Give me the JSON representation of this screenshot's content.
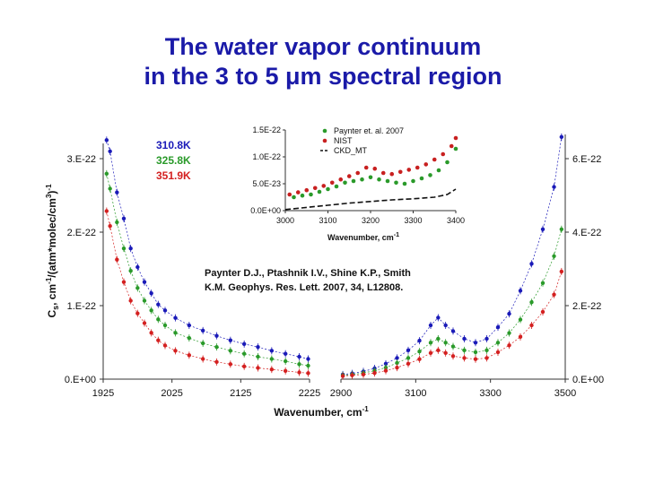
{
  "slide": {
    "title_line1": "The water vapor continuum",
    "title_line2": "in the 3 to 5 μm spectral region",
    "citation_line1": "Paynter D.J., Ptashnik I.V., Shine K.P., Smith",
    "citation_line2": "K.M. Geophys. Res. Lett. 2007, 34, L12808."
  },
  "colors": {
    "title": "#1a1aa8",
    "s310": "#1a1ab8",
    "s325": "#2a9a2a",
    "s351": "#d42020",
    "nist": "#c82020",
    "paynter": "#2a9a2a",
    "ckd": "#111111"
  },
  "chart_data": [
    {
      "type": "scatter",
      "ylabel": "Cs, cm-1/(atm*molec/cm3)-1",
      "xlabel": "Wavenumber, cm-1",
      "left_panel": {
        "xlim": [
          1925,
          2225
        ],
        "x_ticks": [
          "1925",
          "2025",
          "2125",
          "2225"
        ],
        "y_ticks": [
          "0.E+00",
          "1.E-22",
          "2.E-22",
          "3.E-22"
        ],
        "ylim": [
          0,
          3.3e-22
        ],
        "series": [
          {
            "name": "310.8K",
            "color_key": "s310",
            "x": [
              1930,
              1935,
              1945,
              1955,
              1965,
              1975,
              1985,
              1995,
              2005,
              2015,
              2030,
              2050,
              2070,
              2090,
              2110,
              2130,
              2150,
              2170,
              2190,
              2210,
              2223
            ],
            "y": [
              3.2e-22,
              3.05e-22,
              2.5e-22,
              2.15e-22,
              1.75e-22,
              1.5e-22,
              1.3e-22,
              1.15e-22,
              1e-22,
              9.2e-23,
              8.2e-23,
              7.2e-23,
              6.5e-23,
              5.8e-23,
              5.2e-23,
              4.7e-23,
              4.3e-23,
              3.8e-23,
              3.4e-23,
              3e-23,
              2.7e-23
            ]
          },
          {
            "name": "325.8K",
            "color_key": "s325",
            "x": [
              1930,
              1935,
              1945,
              1955,
              1965,
              1975,
              1985,
              1995,
              2005,
              2015,
              2030,
              2050,
              2070,
              2090,
              2110,
              2130,
              2150,
              2170,
              2190,
              2210,
              2223
            ],
            "y": [
              2.75e-22,
              2.55e-22,
              2.1e-22,
              1.75e-22,
              1.45e-22,
              1.22e-22,
              1.05e-22,
              9.2e-23,
              8e-23,
              7.2e-23,
              6.2e-23,
              5.5e-23,
              4.8e-23,
              4.3e-23,
              3.8e-23,
              3.4e-23,
              3e-23,
              2.7e-23,
              2.4e-23,
              2e-23,
              1.8e-23
            ]
          },
          {
            "name": "351.9K",
            "color_key": "s351",
            "x": [
              1930,
              1935,
              1945,
              1955,
              1965,
              1975,
              1985,
              1995,
              2005,
              2015,
              2030,
              2050,
              2070,
              2090,
              2110,
              2130,
              2150,
              2170,
              2190,
              2210,
              2223
            ],
            "y": [
              2.25e-22,
              2.05e-22,
              1.6e-22,
              1.3e-22,
              1.05e-22,
              8.8e-23,
              7.5e-23,
              6.2e-23,
              5.2e-23,
              4.5e-23,
              3.8e-23,
              3.2e-23,
              2.7e-23,
              2.3e-23,
              2e-23,
              1.7e-23,
              1.5e-23,
              1.3e-23,
              1.1e-23,
              9e-24,
              8e-24
            ]
          }
        ]
      },
      "right_panel": {
        "xlim": [
          2900,
          3500
        ],
        "x_ticks": [
          "2900",
          "3100",
          "3300",
          "3500"
        ],
        "y_ticks": [
          "0.E+00",
          "2.E-22",
          "4.E-22",
          "6.E-22"
        ],
        "ylim": [
          0,
          6.6e-22
        ],
        "series": [
          {
            "name": "310.8K",
            "color_key": "s310",
            "x": [
              2905,
              2930,
              2960,
              2990,
              3020,
              3050,
              3080,
              3110,
              3140,
              3160,
              3180,
              3200,
              3230,
              3260,
              3290,
              3320,
              3350,
              3380,
              3410,
              3440,
              3470,
              3490
            ],
            "y": [
              1.2e-23,
              1.5e-23,
              2e-23,
              2.8e-23,
              4e-23,
              5.5e-23,
              7.5e-23,
              1e-22,
              1.4e-22,
              1.6e-22,
              1.4e-22,
              1.25e-22,
              1.05e-22,
              9.5e-23,
              1.05e-22,
              1.35e-22,
              1.7e-22,
              2.3e-22,
              3e-22,
              3.9e-22,
              5e-22,
              6.3e-22
            ]
          },
          {
            "name": "325.8K",
            "color_key": "s325",
            "x": [
              2905,
              2930,
              2960,
              2990,
              3020,
              3050,
              3080,
              3110,
              3140,
              3160,
              3180,
              3200,
              3230,
              3260,
              3290,
              3320,
              3350,
              3380,
              3410,
              3440,
              3470,
              3490
            ],
            "y": [
              1e-23,
              1.2e-23,
              1.6e-23,
              2.2e-23,
              3e-23,
              4.2e-23,
              5.5e-23,
              7.2e-23,
              9.5e-23,
              1.05e-22,
              9.5e-23,
              8.5e-23,
              7.5e-23,
              7e-23,
              7.5e-23,
              9.5e-23,
              1.2e-22,
              1.55e-22,
              2e-22,
              2.5e-22,
              3.2e-22,
              3.9e-22
            ]
          },
          {
            "name": "351.9K",
            "color_key": "s351",
            "x": [
              2905,
              2930,
              2960,
              2990,
              3020,
              3050,
              3080,
              3110,
              3140,
              3160,
              3180,
              3200,
              3230,
              3260,
              3290,
              3320,
              3350,
              3380,
              3410,
              3440,
              3470,
              3490
            ],
            "y": [
              8e-24,
              1e-23,
              1.2e-23,
              1.6e-23,
              2.2e-23,
              3e-23,
              4e-23,
              5.2e-23,
              6.8e-23,
              7.5e-23,
              6.8e-23,
              6e-23,
              5.5e-23,
              5.2e-23,
              5.5e-23,
              7e-23,
              8.8e-23,
              1.1e-22,
              1.4e-22,
              1.75e-22,
              2.2e-22,
              2.8e-22
            ]
          }
        ]
      },
      "legend": [
        {
          "name": "310.8K",
          "color_key": "s310"
        },
        {
          "name": "325.8K",
          "color_key": "s325"
        },
        {
          "name": "351.9K",
          "color_key": "s351"
        }
      ]
    },
    {
      "type": "scatter",
      "xlabel": "Wavenumber, cm-1",
      "xlim": [
        3000,
        3400
      ],
      "x_ticks": [
        "3000",
        "3100",
        "3200",
        "3300",
        "3400"
      ],
      "ylim": [
        0,
        1.5e-22
      ],
      "y_ticks": [
        "0.0E+00",
        "5.0E-23",
        "1.0E-22",
        "1.5E-22"
      ],
      "legend_position": "top-right",
      "legend": [
        "Paynter et. al. 2007",
        "NIST",
        "CKD_MT"
      ],
      "series": [
        {
          "name": "Paynter et. al. 2007",
          "color_key": "paynter",
          "x": [
            3020,
            3040,
            3060,
            3080,
            3100,
            3120,
            3140,
            3160,
            3180,
            3200,
            3220,
            3240,
            3260,
            3280,
            3300,
            3320,
            3340,
            3360,
            3380,
            3400
          ],
          "y": [
            2.5e-23,
            2.8e-23,
            3e-23,
            3.5e-23,
            4e-23,
            4.5e-23,
            5.2e-23,
            5.5e-23,
            5.8e-23,
            6.2e-23,
            5.8e-23,
            5.5e-23,
            5.2e-23,
            5e-23,
            5.5e-23,
            6e-23,
            6.6e-23,
            7.5e-23,
            9e-23,
            1.15e-22
          ]
        },
        {
          "name": "NIST",
          "color_key": "nist",
          "x": [
            3010,
            3030,
            3050,
            3070,
            3090,
            3110,
            3130,
            3150,
            3170,
            3190,
            3210,
            3230,
            3250,
            3270,
            3290,
            3310,
            3330,
            3350,
            3370,
            3390,
            3400
          ],
          "y": [
            3e-23,
            3.4e-23,
            3.8e-23,
            4.2e-23,
            4.6e-23,
            5.2e-23,
            5.8e-23,
            6.4e-23,
            7e-23,
            8e-23,
            7.8e-23,
            7e-23,
            6.8e-23,
            7.2e-23,
            7.6e-23,
            8e-23,
            8.6e-23,
            9.5e-23,
            1.05e-22,
            1.2e-22,
            1.35e-22
          ]
        },
        {
          "name": "CKD_MT",
          "color_key": "ckd",
          "x": [
            3000,
            3050,
            3100,
            3150,
            3200,
            3250,
            3300,
            3350,
            3380,
            3400
          ],
          "y": [
            2e-24,
            6e-24,
            1e-23,
            1.4e-23,
            1.7e-23,
            2e-23,
            2.2e-23,
            2.5e-23,
            3e-23,
            4e-23
          ]
        }
      ]
    }
  ]
}
